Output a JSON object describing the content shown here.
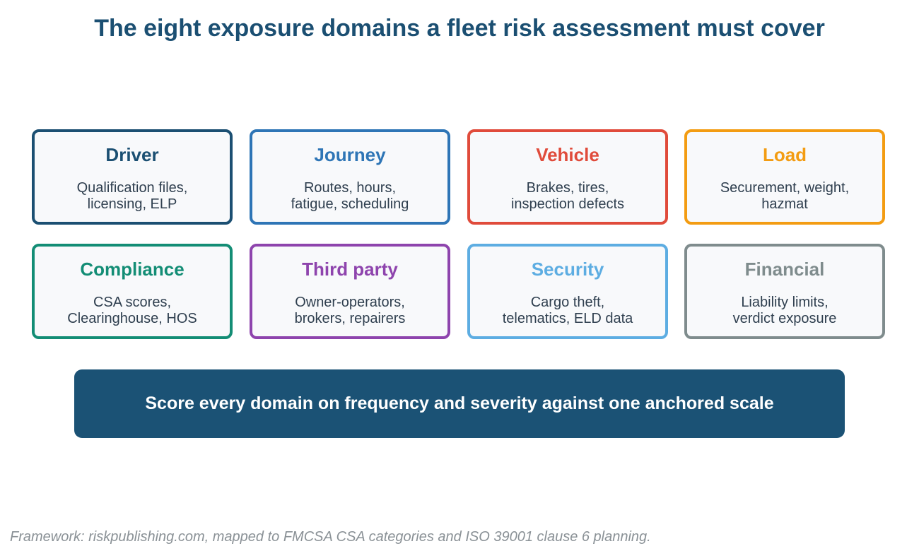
{
  "title": "The eight exposure domains a fleet risk assessment must cover",
  "domains": [
    {
      "name": "Driver",
      "desc_line1": "Qualification files,",
      "desc_line2": "licensing, ELP",
      "color": "#1b4f72"
    },
    {
      "name": "Journey",
      "desc_line1": "Routes, hours,",
      "desc_line2": "fatigue, scheduling",
      "color": "#2e75b6"
    },
    {
      "name": "Vehicle",
      "desc_line1": "Brakes, tires,",
      "desc_line2": "inspection defects",
      "color": "#e04b3b"
    },
    {
      "name": "Load",
      "desc_line1": "Securement, weight,",
      "desc_line2": "hazmat",
      "color": "#f39c12"
    },
    {
      "name": "Compliance",
      "desc_line1": "CSA scores,",
      "desc_line2": "Clearinghouse, HOS",
      "color": "#138d75"
    },
    {
      "name": "Third party",
      "desc_line1": "Owner-operators,",
      "desc_line2": "brokers, repairers",
      "color": "#8e44ad"
    },
    {
      "name": "Security",
      "desc_line1": "Cargo theft,",
      "desc_line2": "telematics, ELD data",
      "color": "#5dade2"
    },
    {
      "name": "Financial",
      "desc_line1": "Liability limits,",
      "desc_line2": "verdict exposure",
      "color": "#7f8c8d"
    }
  ],
  "banner": "Score every domain on frequency and severity against one anchored scale",
  "banner_color": "#1b5275",
  "footer": "Framework: riskpublishing.com, mapped to FMCSA CSA categories and ISO 39001 clause 6 planning."
}
